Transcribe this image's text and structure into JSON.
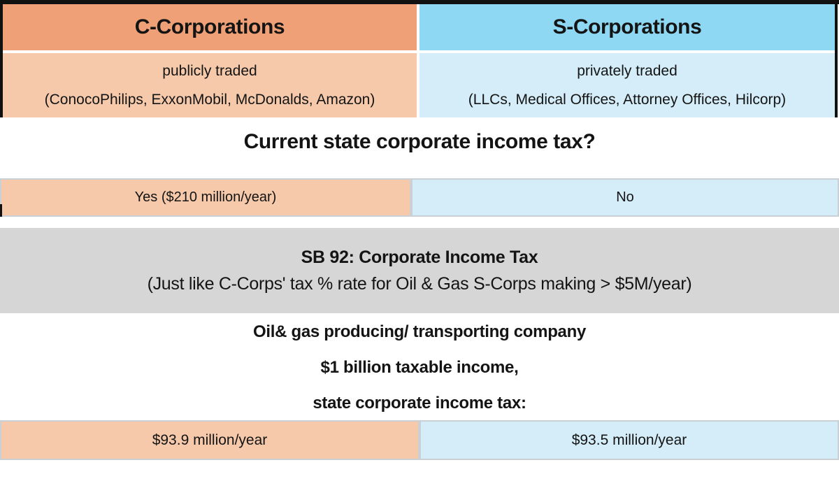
{
  "table": {
    "columns": [
      {
        "header": "C-Corporations",
        "trading": "publicly traded",
        "examples": "(ConocoPhilips, ExxonMobil, McDonalds, Amazon)",
        "current_tax": "Yes ($210 million/year)",
        "sb92_tax": "$93.9 million/year"
      },
      {
        "header": "S-Corporations",
        "trading": "privately traded",
        "examples": "(LLCs, Medical Offices, Attorney Offices, Hilcorp)",
        "current_tax": "No",
        "sb92_tax": "$93.5 million/year"
      }
    ]
  },
  "question_heading": "Current state corporate income tax?",
  "sb92_banner": {
    "title": "SB 92: Corporate Income Tax",
    "subtitle": "(Just like C-Corps' tax % rate for Oil & Gas S-Corps making > $5M/year)"
  },
  "scenario": {
    "lines": [
      "Oil& gas producing/ transporting company",
      "$1 billion taxable income,",
      "state corporate income tax:"
    ]
  },
  "colors": {
    "c_header_bg": "#EFA077",
    "c_light_bg": "#F5C9AA",
    "s_header_bg": "#8ED8F3",
    "s_light_bg": "#D4EDF8",
    "banner_bg": "#D6D6D6",
    "border_black": "#111111",
    "cell_border": "#CBD0D4",
    "text": "#141414"
  }
}
